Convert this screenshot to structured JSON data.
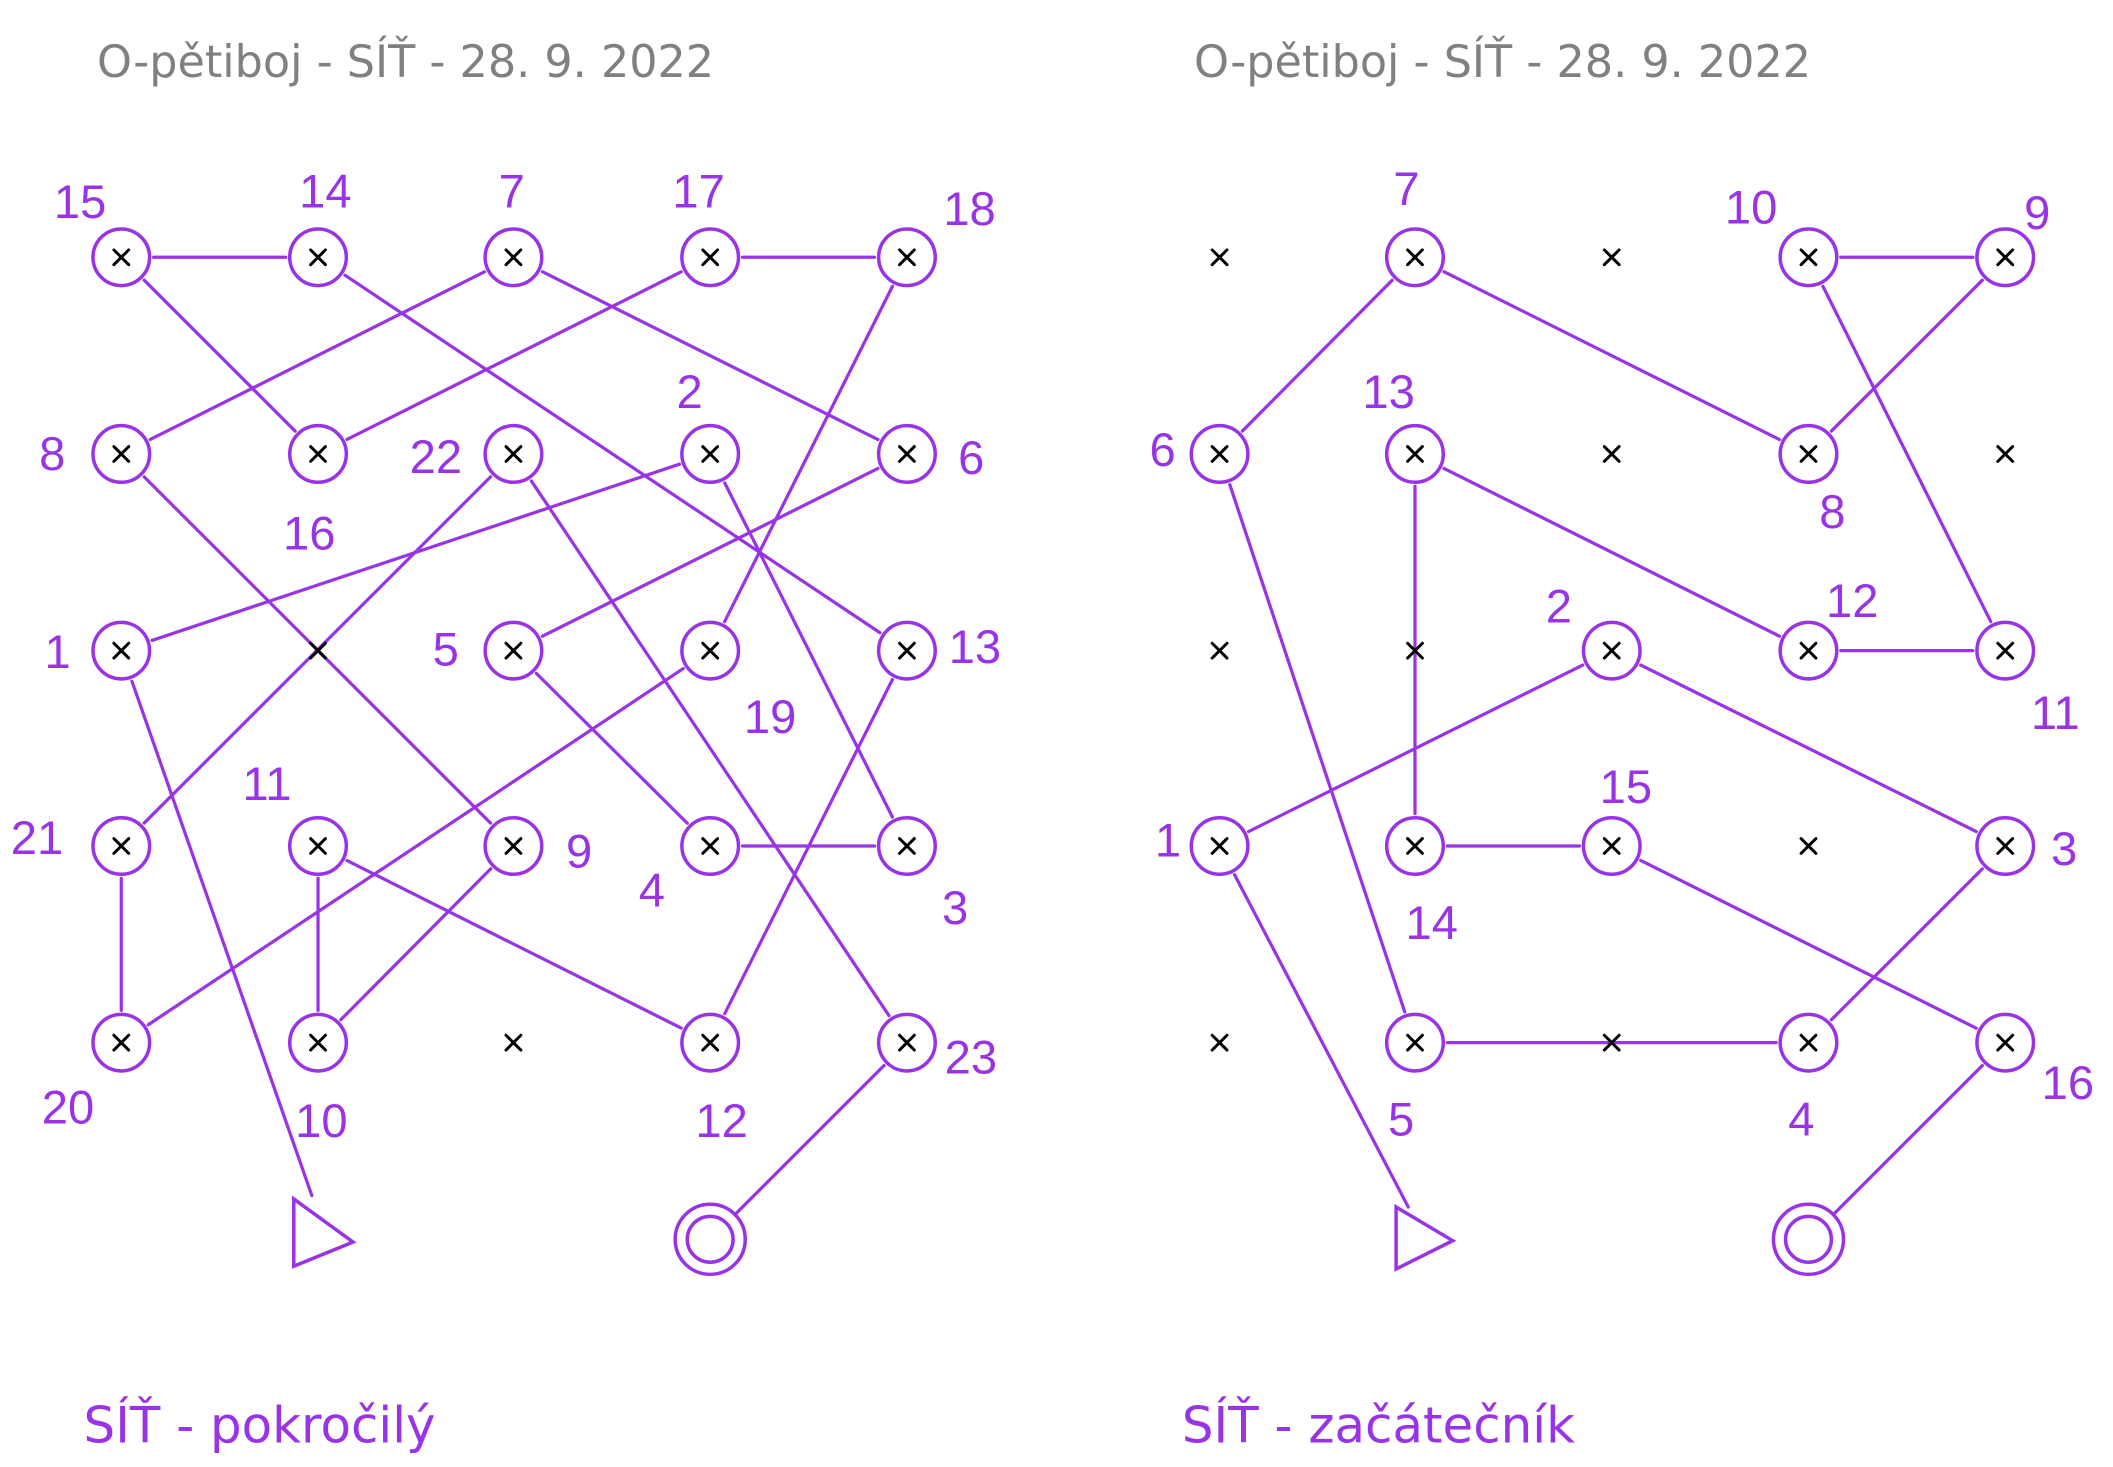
{
  "colors": {
    "course": "#9933e6",
    "title": "#808080",
    "point": "#000000"
  },
  "maps": [
    {
      "title": "O-pětiboj - SÍŤ - 28. 9. 2022",
      "subtitle": "SÍŤ - pokročilý",
      "controls": [
        {
          "label": "15"
        },
        {
          "label": "14"
        },
        {
          "label": "7"
        },
        {
          "label": "17"
        },
        {
          "label": "18"
        },
        {
          "label": "8"
        },
        {
          "label": "16"
        },
        {
          "label": "22"
        },
        {
          "label": "2"
        },
        {
          "label": "6"
        },
        {
          "label": "1"
        },
        {
          "label": "5"
        },
        {
          "label": "19"
        },
        {
          "label": "13"
        },
        {
          "label": "21"
        },
        {
          "label": "11"
        },
        {
          "label": "9"
        },
        {
          "label": "4"
        },
        {
          "label": "3"
        },
        {
          "label": "20"
        },
        {
          "label": "10"
        },
        {
          "label": "12"
        },
        {
          "label": "23"
        }
      ],
      "legs": [
        [
          "15",
          "14"
        ],
        [
          "17",
          "18"
        ],
        [
          "15",
          "16"
        ],
        [
          "14",
          "13"
        ],
        [
          "7",
          "8"
        ],
        [
          "7",
          "6"
        ],
        [
          "17",
          "16"
        ],
        [
          "18",
          "19"
        ],
        [
          "8",
          "9"
        ],
        [
          "22",
          "21"
        ],
        [
          "22",
          "23"
        ],
        [
          "2",
          "1"
        ],
        [
          "2",
          "3"
        ],
        [
          "6",
          "5"
        ],
        [
          "5",
          "4"
        ],
        [
          "19",
          "20"
        ],
        [
          "13",
          "12"
        ],
        [
          "21",
          "20"
        ],
        [
          "11",
          "10"
        ],
        [
          "11",
          "12"
        ],
        [
          "9",
          "10"
        ],
        [
          "4",
          "3"
        ],
        [
          "1",
          "start"
        ],
        [
          "23",
          "finish"
        ]
      ]
    },
    {
      "title": "O-pětiboj - SÍŤ - 28. 9. 2022",
      "subtitle": "SÍŤ - začátečník",
      "controls": [
        {
          "label": "7"
        },
        {
          "label": "10"
        },
        {
          "label": "9"
        },
        {
          "label": "6"
        },
        {
          "label": "13"
        },
        {
          "label": "8"
        },
        {
          "label": "2"
        },
        {
          "label": "12"
        },
        {
          "label": "11"
        },
        {
          "label": "1"
        },
        {
          "label": "14"
        },
        {
          "label": "15"
        },
        {
          "label": "3"
        },
        {
          "label": "5"
        },
        {
          "label": "4"
        },
        {
          "label": "16"
        }
      ],
      "legs": [
        [
          "7",
          "6"
        ],
        [
          "7",
          "8"
        ],
        [
          "10",
          "9"
        ],
        [
          "10",
          "11"
        ],
        [
          "9",
          "8"
        ],
        [
          "6",
          "5"
        ],
        [
          "13",
          "14"
        ],
        [
          "13",
          "12"
        ],
        [
          "12",
          "11"
        ],
        [
          "2",
          "1"
        ],
        [
          "2",
          "3"
        ],
        [
          "14",
          "15"
        ],
        [
          "15",
          "16"
        ],
        [
          "3",
          "4"
        ],
        [
          "5",
          "4"
        ],
        [
          "1",
          "start"
        ],
        [
          "16",
          "finish"
        ]
      ]
    }
  ]
}
